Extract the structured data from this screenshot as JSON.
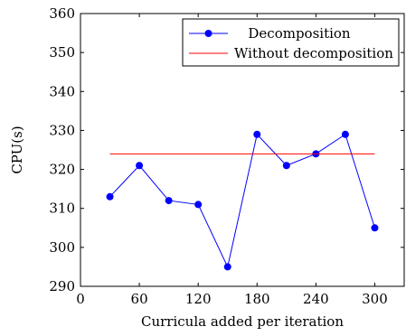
{
  "chart_data": {
    "type": "line",
    "xlabel": "Curricula added per iteration",
    "ylabel": "CPU(s)",
    "xlim": [
      0,
      330
    ],
    "ylim": [
      290,
      360
    ],
    "xticks": [
      0,
      60,
      120,
      180,
      240,
      300
    ],
    "yticks": [
      290,
      300,
      310,
      320,
      330,
      340,
      350,
      360
    ],
    "grid": false,
    "legend_position": "top-right",
    "series": [
      {
        "name": "Decomposition",
        "color": "#0000ff",
        "marker": "circle",
        "x": [
          30,
          60,
          90,
          120,
          150,
          180,
          210,
          240,
          270,
          300
        ],
        "y": [
          313,
          321,
          312,
          311,
          295,
          329,
          321,
          324,
          329,
          305
        ]
      },
      {
        "name": "Without decomposition",
        "color": "#ff0000",
        "marker": "none",
        "x": [
          30,
          300
        ],
        "y": [
          324,
          324
        ]
      }
    ]
  }
}
